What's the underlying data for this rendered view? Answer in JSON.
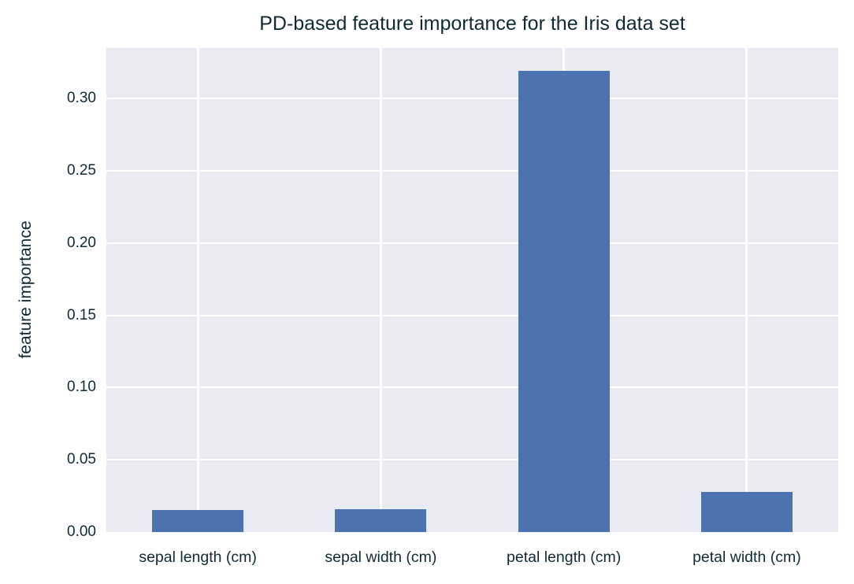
{
  "chart_data": {
    "type": "bar",
    "title": "PD-based feature importance for the Iris data set",
    "xlabel": "",
    "ylabel": "feature importance",
    "categories": [
      "sepal length (cm)",
      "sepal width (cm)",
      "petal length (cm)",
      "petal width (cm)"
    ],
    "values": [
      0.0153,
      0.0158,
      0.319,
      0.0278
    ],
    "ylim": [
      0,
      0.335
    ],
    "yticks": [
      "0.00",
      "0.05",
      "0.10",
      "0.15",
      "0.20",
      "0.25",
      "0.30"
    ],
    "grid": true,
    "legend": null,
    "bar_color": "#4c72b0",
    "background_color": "#eaeaf2"
  }
}
